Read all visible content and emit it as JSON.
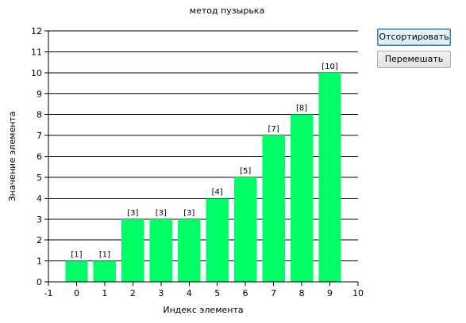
{
  "chart_data": {
    "type": "bar",
    "title": "метод пузырька",
    "xlabel": "Индекс элемента",
    "ylabel": "Значение элемента",
    "x": [
      0,
      1,
      2,
      3,
      4,
      5,
      6,
      7,
      8,
      9
    ],
    "values": [
      1,
      1,
      3,
      3,
      3,
      4,
      5,
      7,
      8,
      10
    ],
    "data_labels": [
      "[1]",
      "[1]",
      "[3]",
      "[3]",
      "[3]",
      "[4]",
      "[5]",
      "[7]",
      "[8]",
      "[10]"
    ],
    "xlim": [
      -1,
      10
    ],
    "ylim": [
      0,
      12
    ],
    "x_ticks": [
      -1,
      0,
      1,
      2,
      3,
      4,
      5,
      6,
      7,
      8,
      9,
      10
    ],
    "y_ticks": [
      0,
      1,
      2,
      3,
      4,
      5,
      6,
      7,
      8,
      9,
      10,
      11,
      12
    ],
    "grid": "horizontal",
    "bar_color": "#00ff66",
    "grid_color": "#000000"
  },
  "buttons": {
    "sort_label": "Отсортировать",
    "shuffle_label": "Перемешать"
  }
}
